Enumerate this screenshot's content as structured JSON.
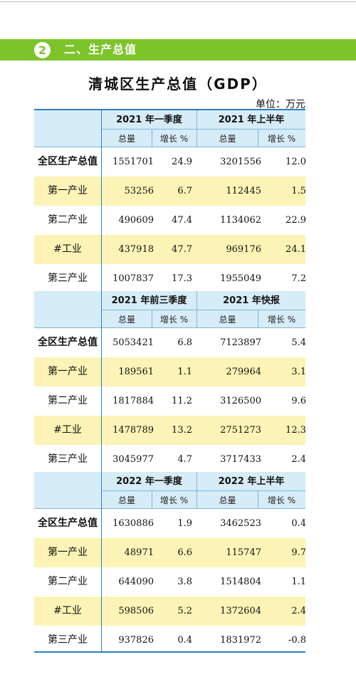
{
  "section": {
    "number": "2",
    "title": "二、生产总值"
  },
  "table": {
    "title": "清城区生产总值（GDP）",
    "unit_label": "单位：",
    "unit_value": "万元",
    "blocks": [
      {
        "periods": [
          "2021 年一季度",
          "2021 年上半年"
        ],
        "sub_headers": [
          "总量",
          "增长 %",
          "总量",
          "增长 %"
        ],
        "rows": [
          {
            "label": "全区生产总值",
            "values": [
              "1551701",
              "24.9",
              "3201556",
              "12.0"
            ]
          },
          {
            "label": "第一产业",
            "values": [
              "53256",
              "6.7",
              "112445",
              "1.5"
            ]
          },
          {
            "label": "第二产业",
            "values": [
              "490609",
              "47.4",
              "1134062",
              "22.9"
            ]
          },
          {
            "label": "#工业",
            "values": [
              "437918",
              "47.7",
              "969176",
              "24.1"
            ]
          },
          {
            "label": "第三产业",
            "values": [
              "1007837",
              "17.3",
              "1955049",
              "7.2"
            ]
          }
        ]
      },
      {
        "periods": [
          "2021 年前三季度",
          "2021 年快报"
        ],
        "sub_headers": [
          "总量",
          "增长 %",
          "总量",
          "增长 %"
        ],
        "rows": [
          {
            "label": "全区生产总值",
            "values": [
              "5053421",
              "6.8",
              "7123897",
              "5.4"
            ]
          },
          {
            "label": "第一产业",
            "values": [
              "189561",
              "1.1",
              "279964",
              "3.1"
            ]
          },
          {
            "label": "第二产业",
            "values": [
              "1817884",
              "11.2",
              "3126500",
              "9.6"
            ]
          },
          {
            "label": "#工业",
            "values": [
              "1478789",
              "13.2",
              "2751273",
              "12.3"
            ]
          },
          {
            "label": "第三产业",
            "values": [
              "3045977",
              "4.7",
              "3717433",
              "2.4"
            ]
          }
        ]
      },
      {
        "periods": [
          "2022 年一季度",
          "2022 年上半年"
        ],
        "sub_headers": [
          "总量",
          "增长 %",
          "总量",
          "增长 %"
        ],
        "rows": [
          {
            "label": "全区生产总值",
            "values": [
              "1630886",
              "1.9",
              "3462523",
              "0.4"
            ]
          },
          {
            "label": "第一产业",
            "values": [
              "48971",
              "6.6",
              "115747",
              "9.7"
            ]
          },
          {
            "label": "第二产业",
            "values": [
              "644090",
              "3.8",
              "1514804",
              "1.1"
            ]
          },
          {
            "label": "#工业",
            "values": [
              "598506",
              "5.2",
              "1372604",
              "2.4"
            ]
          },
          {
            "label": "第三产业",
            "values": [
              "937826",
              "0.4",
              "1831972",
              "-0.8"
            ]
          }
        ]
      }
    ]
  }
}
